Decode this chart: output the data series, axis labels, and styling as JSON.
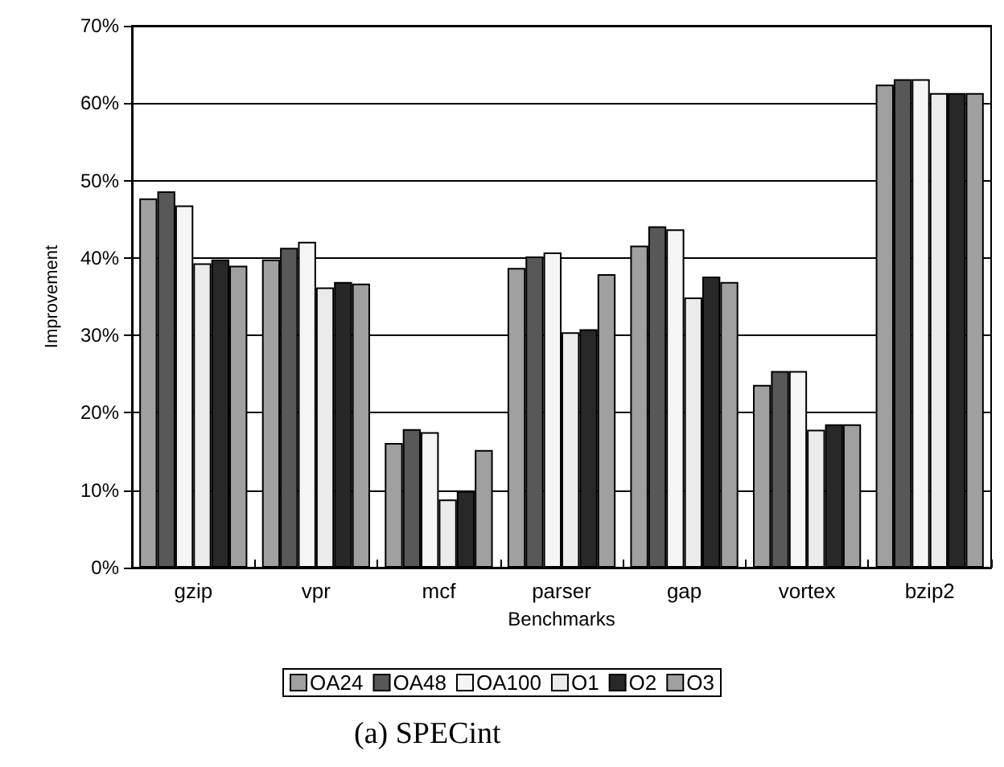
{
  "chart_data": {
    "type": "bar",
    "title": "(a) SPECint",
    "xlabel": "Benchmarks",
    "ylabel": "Improvement",
    "categories": [
      "gzip",
      "vpr",
      "mcf",
      "parser",
      "gap",
      "vortex",
      "bzip2"
    ],
    "series": [
      {
        "name": "OA24",
        "color": "#a0a0a0",
        "values": [
          47.7,
          39.8,
          16.1,
          38.7,
          41.6,
          23.6,
          62.4
        ]
      },
      {
        "name": "OA48",
        "color": "#585858",
        "values": [
          48.6,
          41.3,
          17.9,
          40.2,
          44.1,
          25.4,
          63.1
        ]
      },
      {
        "name": "OA100",
        "color": "#f5f5f5",
        "values": [
          46.8,
          42.1,
          17.5,
          40.7,
          43.7,
          25.4,
          63.1
        ]
      },
      {
        "name": "O1",
        "color": "#ebebeb",
        "values": [
          39.3,
          36.2,
          8.8,
          30.4,
          34.9,
          17.8,
          61.3
        ]
      },
      {
        "name": "O2",
        "color": "#282828",
        "values": [
          39.8,
          36.9,
          9.9,
          30.8,
          37.6,
          18.5,
          61.3
        ]
      },
      {
        "name": "O3",
        "color": "#a0a0a0",
        "values": [
          39.0,
          36.7,
          15.2,
          37.9,
          36.9,
          18.5,
          61.3
        ]
      }
    ],
    "ylim": [
      0,
      70
    ],
    "yticks": [
      {
        "value": 0,
        "label": "0%"
      },
      {
        "value": 10,
        "label": "10%"
      },
      {
        "value": 20,
        "label": "20%"
      },
      {
        "value": 30,
        "label": "30%"
      },
      {
        "value": 40,
        "label": "40%"
      },
      {
        "value": 50,
        "label": "50%"
      },
      {
        "value": 60,
        "label": "60%"
      },
      {
        "value": 70,
        "label": "70%"
      }
    ],
    "grid": "y",
    "legend": "bottom"
  }
}
